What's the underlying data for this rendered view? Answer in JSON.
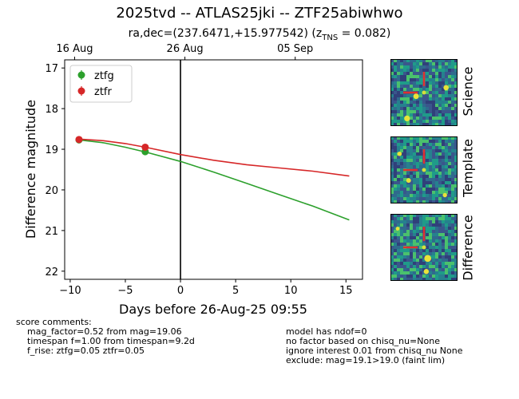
{
  "title": "2025tvd -- ATLAS25jki -- ZTF25abiwhwo",
  "subtitle": "ra,dec=(237.6471,+15.977542) (z",
  "subtitle_sub": "TNS",
  "subtitle_tail": " = 0.082)",
  "chart_data": {
    "type": "line",
    "xlabel": "Days before 26-Aug-25 09:55",
    "ylabel": "Difference magnitude",
    "xlim": [
      -10.5,
      16.5
    ],
    "ylim": [
      22.2,
      16.8
    ],
    "y_inverted": true,
    "x_ticks": [
      -10,
      -5,
      0,
      5,
      10,
      15
    ],
    "x_tick_labels": [
      "−10",
      "−5",
      "0",
      "5",
      "10",
      "15"
    ],
    "y_ticks": [
      17,
      18,
      19,
      20,
      21,
      22
    ],
    "y_tick_labels": [
      "17",
      "18",
      "19",
      "20",
      "21",
      "22"
    ],
    "top_ticks": [
      {
        "x": -9.6,
        "label": "16 Aug"
      },
      {
        "x": 0.4,
        "label": "26 Aug"
      },
      {
        "x": 10.4,
        "label": "05 Sep"
      }
    ],
    "vline_x": 0,
    "legend_position": "top-left",
    "series": [
      {
        "name": "ztfg",
        "color": "#2ca02c",
        "points": [
          {
            "x": -9.2,
            "y": 18.77
          },
          {
            "x": -3.2,
            "y": 19.06
          }
        ],
        "model": [
          {
            "x": -9.2,
            "y": 18.77
          },
          {
            "x": -7,
            "y": 18.84
          },
          {
            "x": -5,
            "y": 18.95
          },
          {
            "x": -3,
            "y": 19.08
          },
          {
            "x": 0,
            "y": 19.3
          },
          {
            "x": 3,
            "y": 19.56
          },
          {
            "x": 6,
            "y": 19.84
          },
          {
            "x": 9,
            "y": 20.12
          },
          {
            "x": 12,
            "y": 20.4
          },
          {
            "x": 15.3,
            "y": 20.74
          }
        ]
      },
      {
        "name": "ztfr",
        "color": "#d62728",
        "points": [
          {
            "x": -9.2,
            "y": 18.76
          },
          {
            "x": -3.2,
            "y": 18.95
          }
        ],
        "model": [
          {
            "x": -9.2,
            "y": 18.75
          },
          {
            "x": -7,
            "y": 18.79
          },
          {
            "x": -5,
            "y": 18.86
          },
          {
            "x": -3,
            "y": 18.96
          },
          {
            "x": 0,
            "y": 19.13
          },
          {
            "x": 3,
            "y": 19.27
          },
          {
            "x": 6,
            "y": 19.38
          },
          {
            "x": 9,
            "y": 19.46
          },
          {
            "x": 12,
            "y": 19.54
          },
          {
            "x": 15.3,
            "y": 19.66
          }
        ]
      }
    ]
  },
  "thumbnails": {
    "labels": [
      "Science",
      "Template",
      "Difference"
    ]
  },
  "comments": {
    "left_title": "score comments:",
    "left_lines": [
      "mag_factor=0.52 from mag=19.06",
      "timespan f=1.00 from timespan=9.2d",
      "f_rise: ztfg=0.05 ztfr=0.05"
    ],
    "right_lines": [
      "model has ndof=0",
      "no factor based on chisq_nu=None",
      "ignore interest 0.01 from chisq_nu None",
      "exclude: mag=19.1>19.0 (faint lim)"
    ]
  }
}
